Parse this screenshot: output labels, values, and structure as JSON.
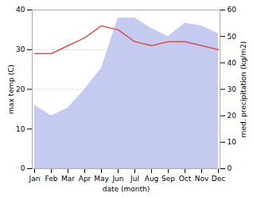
{
  "chart_data": {
    "type": "line",
    "xlabel": "date (month)",
    "ylabel": "max temp (C)",
    "y2label": "med. precipitation (kg/m2)",
    "categories": [
      "Jan",
      "Feb",
      "Mar",
      "Apr",
      "May",
      "Jun",
      "Jul",
      "Aug",
      "Sep",
      "Oct",
      "Nov",
      "Dec"
    ],
    "series": [
      {
        "type": "area",
        "axis": "y2",
        "color": "#c5caf0",
        "values": [
          24,
          20,
          23,
          30,
          38,
          57,
          57,
          53,
          50,
          55,
          54,
          51
        ]
      },
      {
        "type": "line",
        "color": "#d9534f",
        "values": [
          29,
          29,
          31,
          33,
          36,
          35,
          32,
          31,
          32,
          32,
          31,
          30
        ]
      }
    ],
    "ylim": [
      0,
      40
    ],
    "yticks": [
      0,
      10,
      20,
      30,
      40
    ],
    "y2lim": [
      0,
      60
    ],
    "y2ticks": [
      0,
      10,
      20,
      30,
      40,
      50,
      60
    ],
    "grid": true
  }
}
